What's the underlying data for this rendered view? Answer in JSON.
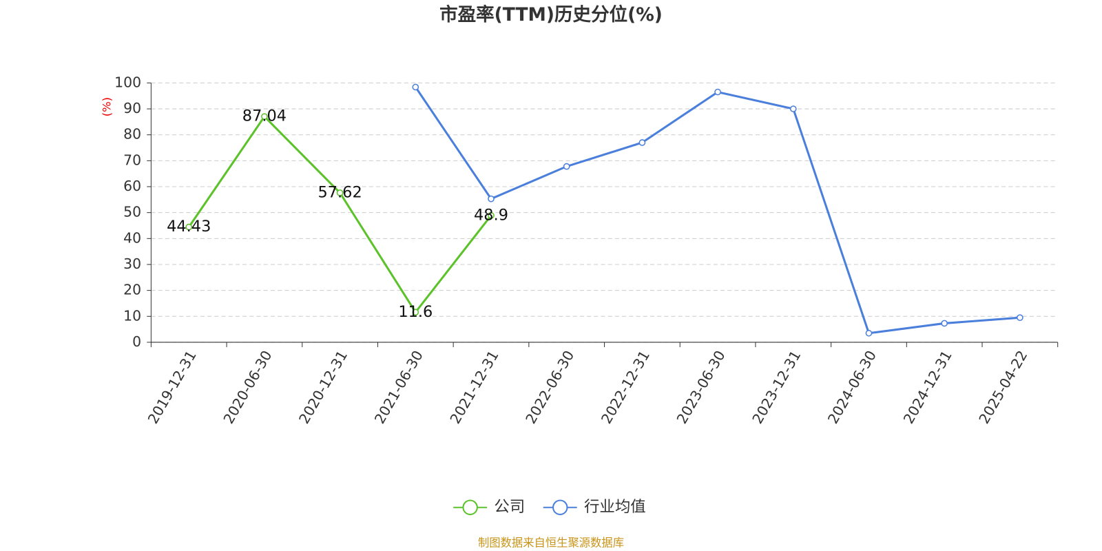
{
  "chart_data": {
    "type": "line",
    "title": "市盈率(TTM)历史分位(%)",
    "y_label": "(%)",
    "categories": [
      "2019-12-31",
      "2020-06-30",
      "2020-12-31",
      "2021-06-30",
      "2021-12-31",
      "2022-06-30",
      "2022-12-31",
      "2023-06-30",
      "2023-12-31",
      "2024-06-30",
      "2024-12-31",
      "2025-04-22"
    ],
    "series": [
      {
        "name": "公司",
        "color": "#5cc22a",
        "values": [
          44.43,
          87.04,
          57.62,
          11.6,
          48.9,
          null,
          null,
          null,
          null,
          null,
          null,
          null
        ],
        "show_labels": true
      },
      {
        "name": "行业均值",
        "color": "#4a7fdc",
        "values": [
          null,
          null,
          null,
          98.4,
          55.3,
          67.8,
          77.0,
          96.5,
          90.0,
          3.5,
          7.3,
          9.5
        ],
        "show_labels": false
      }
    ],
    "ylim": [
      0,
      100
    ],
    "yticks": [
      0,
      10,
      20,
      30,
      40,
      50,
      60,
      70,
      80,
      90,
      100
    ],
    "grid": true,
    "source": "制图数据来自恒生聚源数据库"
  }
}
